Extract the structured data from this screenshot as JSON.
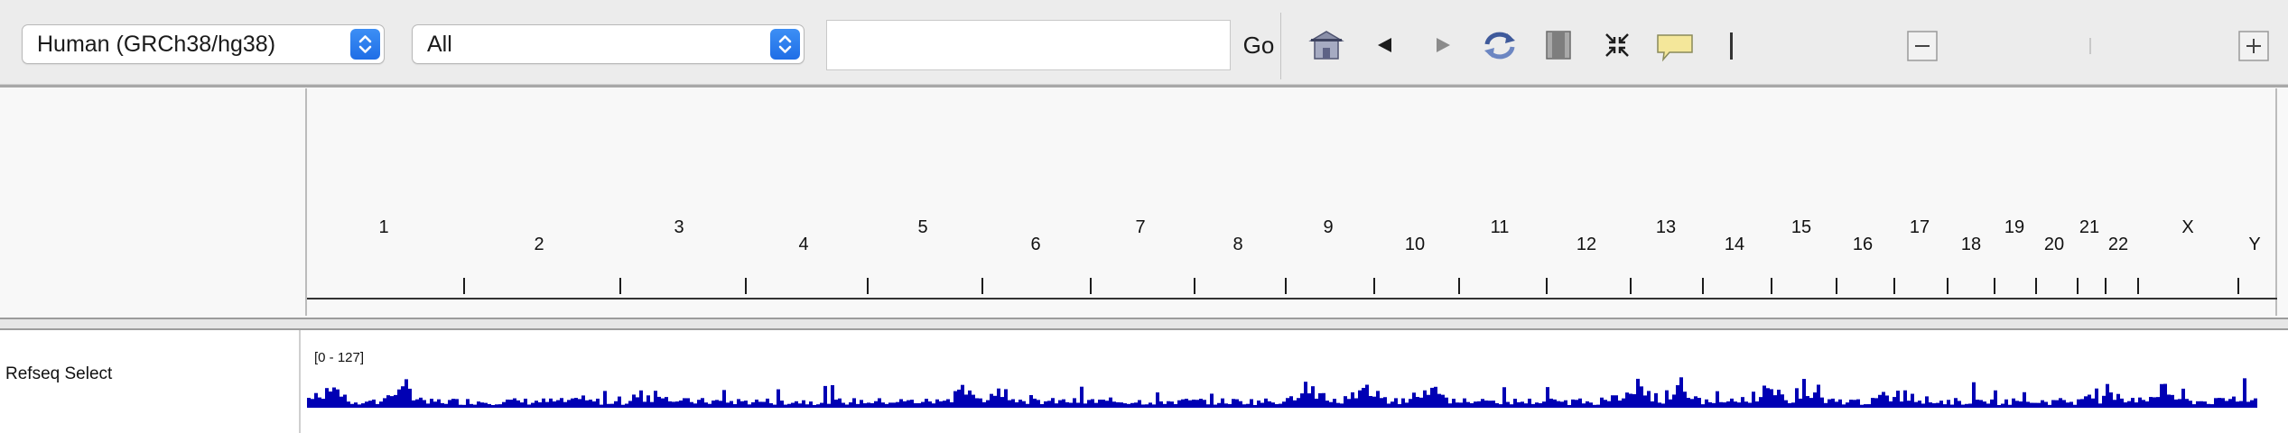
{
  "toolbar": {
    "genome": {
      "value": "Human (GRCh38/hg38)"
    },
    "chromosome": {
      "value": "All"
    },
    "locus": {
      "value": "",
      "placeholder": ""
    },
    "go_label": "Go",
    "icons": [
      "home-icon",
      "back-arrow-icon",
      "forward-arrow-icon",
      "refresh-icon",
      "region-of-interest-icon",
      "resize-to-window-icon",
      "popup-info-icon",
      "zoom-out-icon",
      "zoom-in-icon"
    ]
  },
  "ideogram": {
    "chromosomes": [
      "1",
      "2",
      "3",
      "4",
      "5",
      "6",
      "7",
      "8",
      "9",
      "10",
      "11",
      "12",
      "13",
      "14",
      "15",
      "16",
      "17",
      "18",
      "19",
      "20",
      "21",
      "22",
      "X",
      "Y"
    ]
  },
  "tracks": [
    {
      "name": "Refseq Select",
      "data_range": "[0 - 127]",
      "color": "#0000b4"
    }
  ],
  "colors": {
    "toolbar_bg": "#ececec",
    "panel_bg": "#f8f8f8",
    "feature_blue": "#0000b4",
    "stepper_blue": "#1f6ee6"
  }
}
